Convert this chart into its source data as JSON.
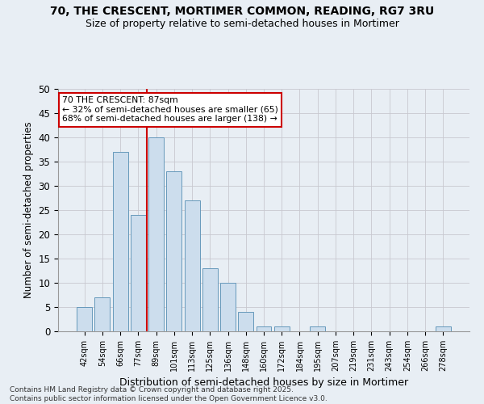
{
  "title_line1": "70, THE CRESCENT, MORTIMER COMMON, READING, RG7 3RU",
  "title_line2": "Size of property relative to semi-detached houses in Mortimer",
  "xlabel": "Distribution of semi-detached houses by size in Mortimer",
  "ylabel": "Number of semi-detached properties",
  "categories": [
    "42sqm",
    "54sqm",
    "66sqm",
    "77sqm",
    "89sqm",
    "101sqm",
    "113sqm",
    "125sqm",
    "136sqm",
    "148sqm",
    "160sqm",
    "172sqm",
    "184sqm",
    "195sqm",
    "207sqm",
    "219sqm",
    "231sqm",
    "243sqm",
    "254sqm",
    "266sqm",
    "278sqm"
  ],
  "values": [
    5,
    7,
    37,
    24,
    40,
    33,
    27,
    13,
    10,
    4,
    1,
    1,
    0,
    1,
    0,
    0,
    0,
    0,
    0,
    0,
    1
  ],
  "bar_color": "#ccdded",
  "bar_edge_color": "#6699bb",
  "property_label": "70 THE CRESCENT: 87sqm",
  "pct_smaller": 32,
  "n_smaller": 65,
  "pct_larger": 68,
  "n_larger": 138,
  "vline_x": 3.5,
  "ylim": [
    0,
    50
  ],
  "yticks": [
    0,
    5,
    10,
    15,
    20,
    25,
    30,
    35,
    40,
    45,
    50
  ],
  "annotation_box_color": "#ffffff",
  "annotation_box_edge": "#cc0000",
  "vline_color": "#cc0000",
  "grid_color": "#c8c8d0",
  "background_color": "#e8eef4",
  "footer1": "Contains HM Land Registry data © Crown copyright and database right 2025.",
  "footer2": "Contains public sector information licensed under the Open Government Licence v3.0."
}
